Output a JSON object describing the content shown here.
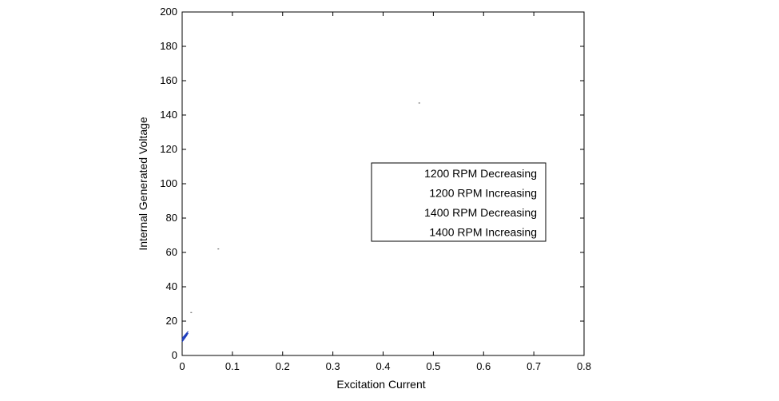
{
  "chart_data": {
    "type": "line",
    "title": "",
    "xlabel": "Excitation Current",
    "ylabel": "Internal Generated Voltage",
    "xlim": [
      0,
      0.8
    ],
    "ylim": [
      0,
      200
    ],
    "x_ticks": [
      "0",
      "0.1",
      "0.2",
      "0.3",
      "0.4",
      "0.5",
      "0.6",
      "0.7",
      "0.8"
    ],
    "y_ticks": [
      "0",
      "20",
      "40",
      "60",
      "80",
      "100",
      "120",
      "140",
      "160",
      "180",
      "200"
    ],
    "grid": false,
    "legend_position": "center-right",
    "series": [
      {
        "name": "1200 RPM Decreasing",
        "color": "#1f3fbf",
        "x": [
          0.0,
          0.005,
          0.01
        ],
        "y": [
          9,
          11,
          13
        ]
      },
      {
        "name": "1200 RPM Increasing",
        "color": "#1f3fbf",
        "x": [
          0.0,
          0.005,
          0.01
        ],
        "y": [
          8,
          10,
          12
        ]
      },
      {
        "name": "1400 RPM Decreasing",
        "color": "#1f3fbf",
        "x": [
          0.0,
          0.006,
          0.012
        ],
        "y": [
          10,
          12,
          14
        ]
      },
      {
        "name": "1400 RPM Increasing",
        "color": "#1f3fbf",
        "x": [
          0.0,
          0.006,
          0.012
        ],
        "y": [
          9,
          11,
          13
        ]
      }
    ],
    "scattered_marks": [
      {
        "x": 0.018,
        "y": 25
      },
      {
        "x": 0.072,
        "y": 62
      },
      {
        "x": 0.472,
        "y": 147
      }
    ]
  }
}
